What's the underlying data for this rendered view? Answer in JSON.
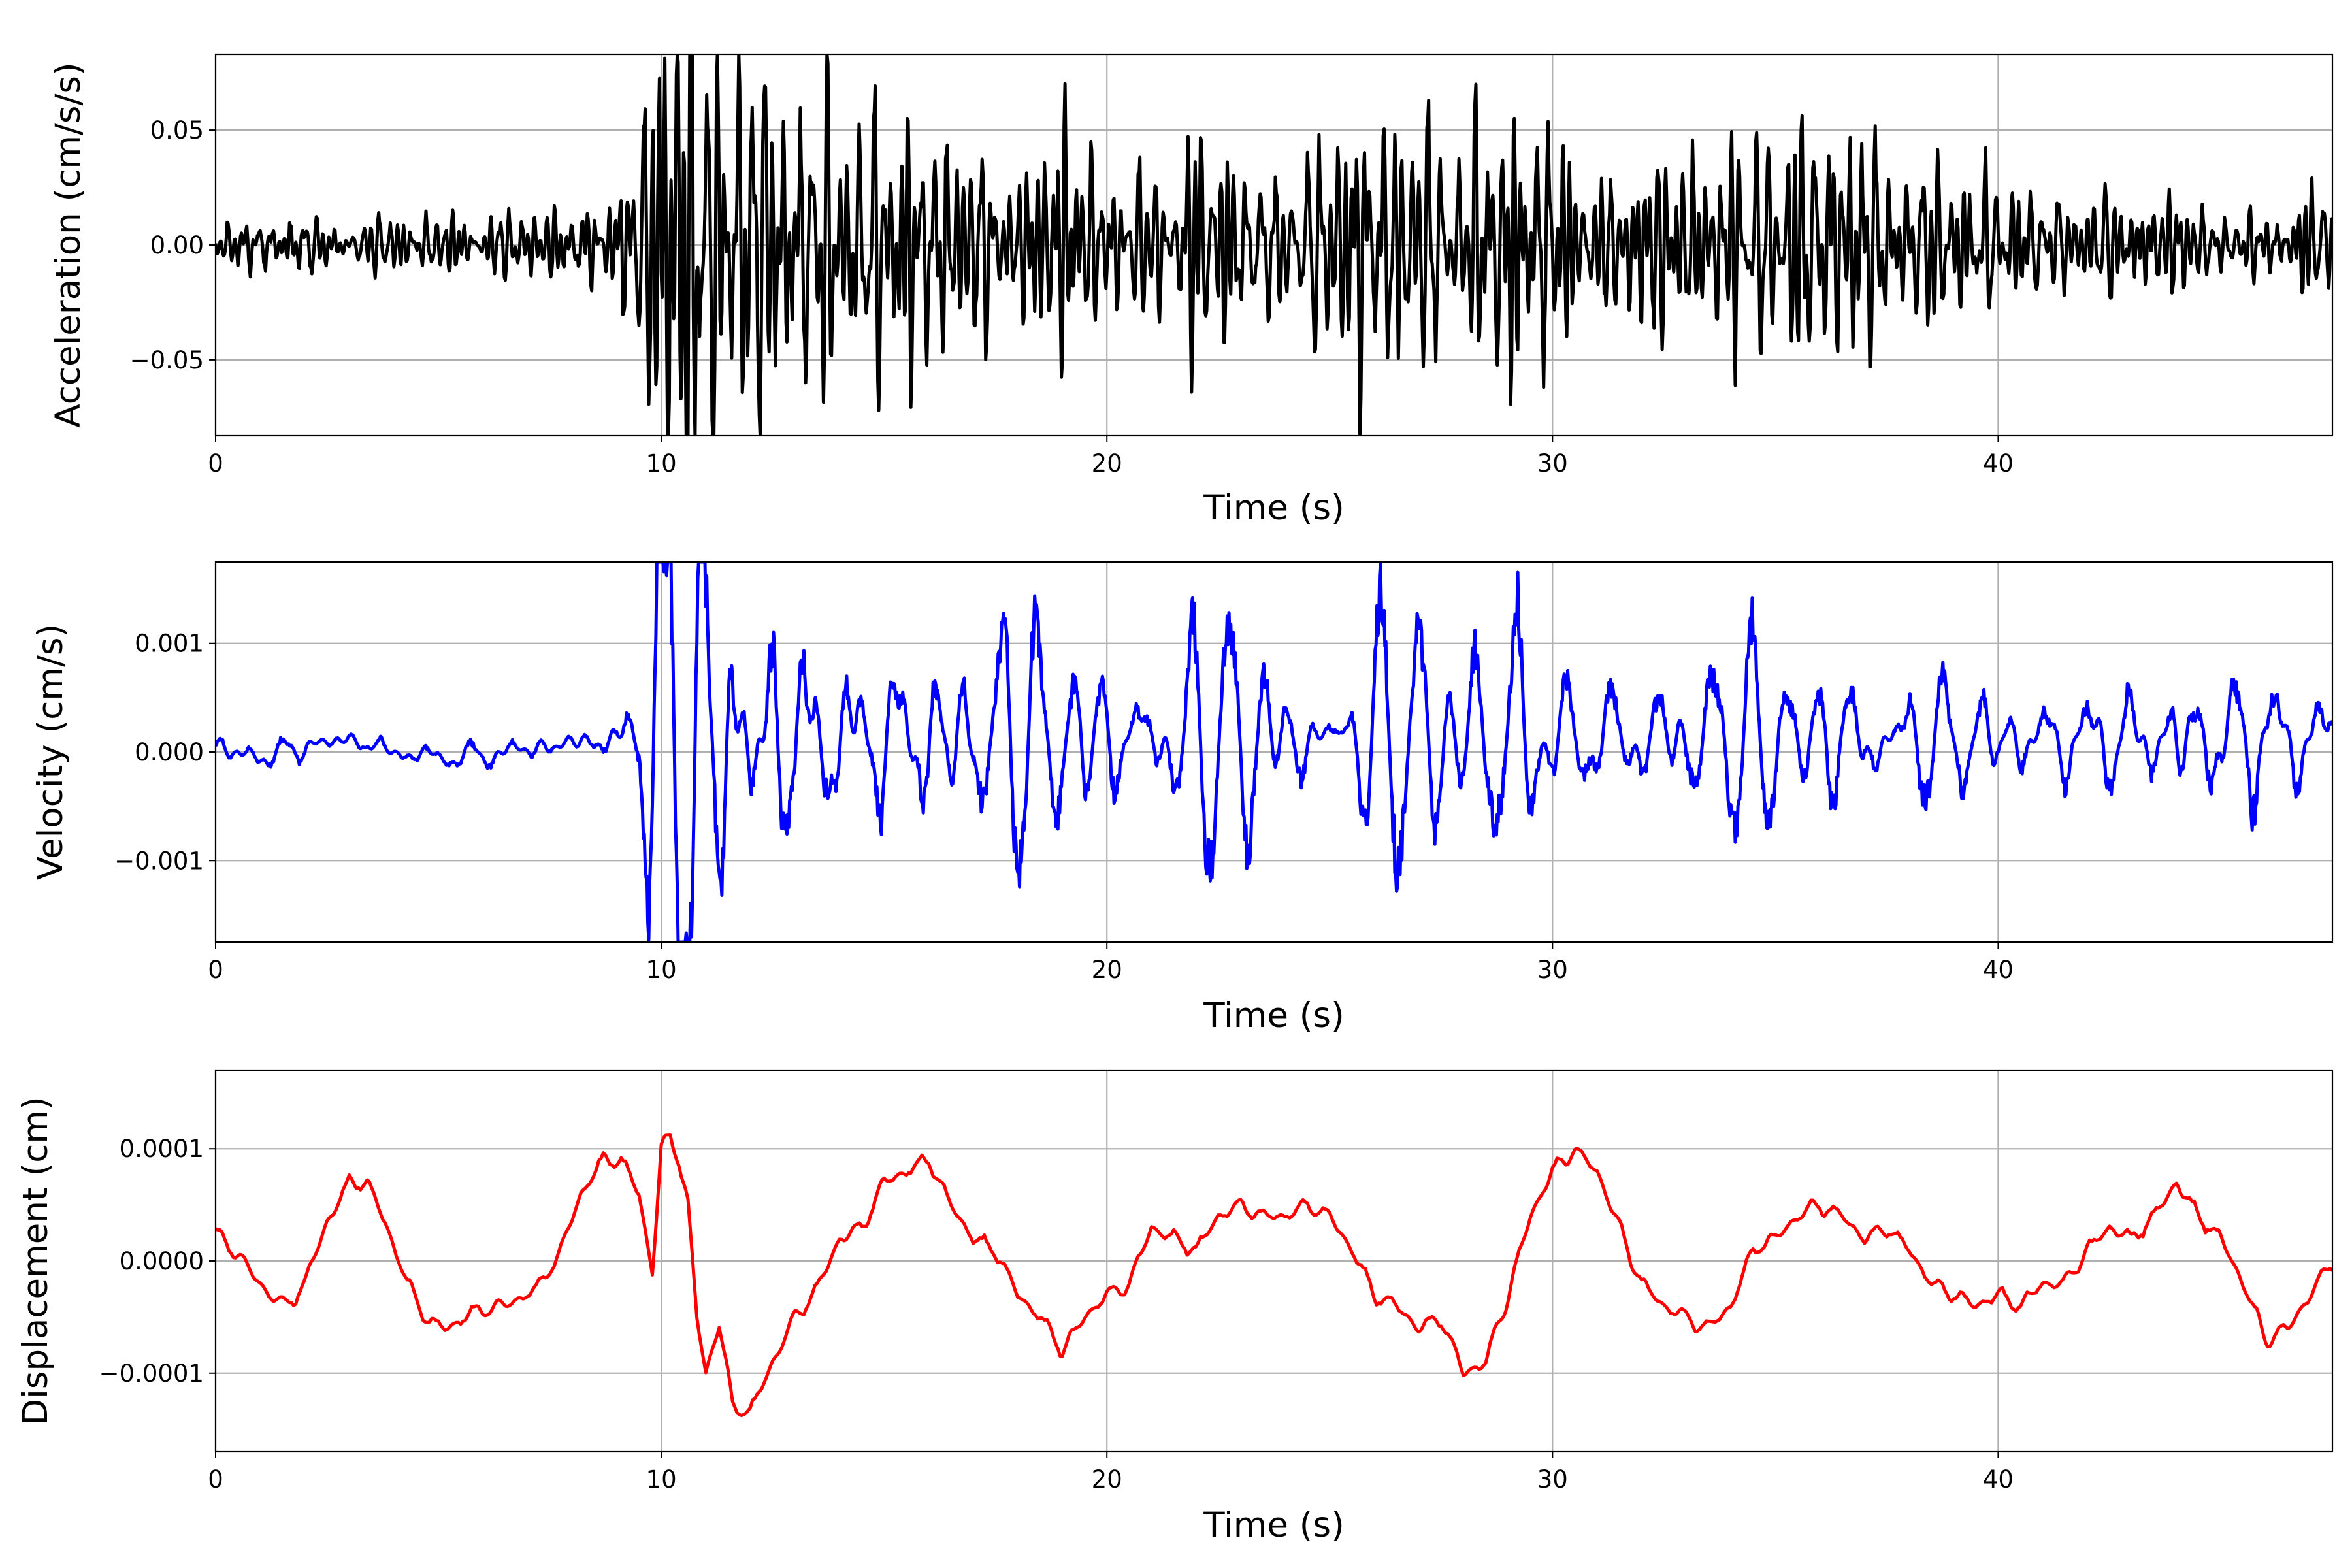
{
  "chart_data": [
    {
      "type": "line",
      "xlabel": "Time (s)",
      "ylabel": "Acceleration (cm/s/s)",
      "xlim": [
        0,
        47.5
      ],
      "ylim": [
        -0.083,
        0.083
      ],
      "xticks": [
        0,
        10,
        20,
        30,
        40
      ],
      "xtick_labels": [
        "0",
        "10",
        "20",
        "30",
        "40"
      ],
      "yticks": [
        -0.05,
        0.0,
        0.05
      ],
      "ytick_labels": [
        "−0.05",
        "0.00",
        "0.05"
      ],
      "grid": true,
      "color": "#000000",
      "signal_dt": 0.02,
      "signal_freq_range_hz": [
        2.5,
        9
      ],
      "envelope": {
        "t": [
          0,
          1,
          2,
          3,
          4,
          5,
          6,
          7,
          8,
          9,
          9.5,
          9.8,
          10.2,
          10.5,
          11,
          12,
          13,
          14,
          15,
          16,
          17,
          18,
          20,
          22,
          24,
          26,
          28,
          29.8,
          30.5,
          32,
          34,
          35.5,
          36,
          37,
          38,
          40,
          42,
          44,
          46,
          47.5
        ],
        "amp": [
          0.004,
          0.0045,
          0.005,
          0.0045,
          0.005,
          0.005,
          0.006,
          0.007,
          0.008,
          0.01,
          0.015,
          0.045,
          0.07,
          0.06,
          0.04,
          0.03,
          0.026,
          0.026,
          0.024,
          0.026,
          0.022,
          0.02,
          0.017,
          0.017,
          0.017,
          0.02,
          0.021,
          0.028,
          0.02,
          0.016,
          0.018,
          0.022,
          0.025,
          0.018,
          0.014,
          0.011,
          0.009,
          0.009,
          0.008,
          0.008
        ]
      }
    },
    {
      "type": "line",
      "xlabel": "Time (s)",
      "ylabel": "Velocity (cm/s)",
      "xlim": [
        0,
        47.5
      ],
      "ylim": [
        -0.00175,
        0.00175
      ],
      "xticks": [
        0,
        10,
        20,
        30,
        40
      ],
      "xtick_labels": [
        "0",
        "10",
        "20",
        "30",
        "40"
      ],
      "yticks": [
        -0.001,
        0.0,
        0.001
      ],
      "ytick_labels": [
        "−0.001",
        "0.000",
        "0.001"
      ],
      "grid": true,
      "color": "#0000ff",
      "signal_dt": 0.02,
      "signal_freq_range_hz": [
        0.9,
        3.5
      ],
      "trend": {
        "t": [
          0,
          1,
          2,
          3,
          4,
          5,
          6,
          7,
          8,
          9
        ],
        "val": [
          3e-05,
          -5e-05,
          5e-05,
          0.00012,
          0.0,
          -5e-05,
          -3e-05,
          3e-05,
          8e-05,
          0.00012
        ]
      },
      "envelope": {
        "t": [
          0,
          2,
          4,
          6,
          8,
          9,
          9.5,
          9.8,
          10.2,
          10.5,
          11,
          12,
          14,
          16,
          18,
          20,
          22,
          24,
          26,
          28,
          29.3,
          30,
          32,
          34,
          36,
          38,
          40,
          42,
          44,
          46,
          47.5
        ],
        "amp": [
          6e-05,
          6e-05,
          5e-05,
          6e-05,
          8e-05,
          0.0001,
          0.00025,
          0.0009,
          0.0013,
          0.0014,
          0.0009,
          0.0006,
          0.00045,
          0.00048,
          0.00045,
          0.0004,
          0.00045,
          0.0005,
          0.0005,
          0.00055,
          0.0009,
          0.0005,
          0.00042,
          0.00035,
          0.00032,
          0.00025,
          0.00022,
          0.00022,
          0.00026,
          0.00024,
          0.00022
        ]
      }
    },
    {
      "type": "line",
      "xlabel": "Time (s)",
      "ylabel": "Displacement (cm)",
      "xlim": [
        0,
        47.5
      ],
      "ylim": [
        -0.00017,
        0.00017
      ],
      "xticks": [
        0,
        10,
        20,
        30,
        40
      ],
      "xtick_labels": [
        "0",
        "10",
        "20",
        "30",
        "40"
      ],
      "yticks": [
        -0.0001,
        0.0,
        0.0001
      ],
      "ytick_labels": [
        "−0.0001",
        "0.0000",
        "0.0001"
      ],
      "grid": true,
      "color": "#ff0000",
      "signal_dt": 0.05,
      "signal_freq_range_hz": [
        1.2,
        2.5
      ],
      "x": [
        0,
        0.3,
        0.7,
        1.2,
        1.6,
        2.0,
        2.5,
        3.0,
        3.4,
        3.8,
        4.3,
        4.8,
        5.2,
        5.8,
        6.5,
        7.2,
        7.7,
        8.2,
        8.7,
        9.1,
        9.5,
        9.8,
        10.0,
        10.2,
        10.4,
        10.6,
        10.8,
        11.0,
        11.3,
        11.6,
        12.0,
        12.5,
        13.0,
        13.5,
        14.0,
        14.5,
        15.0,
        15.5,
        16.0,
        16.5,
        17.0,
        17.5,
        18.0,
        18.5,
        19.0,
        19.5,
        20.0,
        20.5,
        21.0,
        21.5,
        22.0,
        22.5,
        23.0,
        23.5,
        24.0,
        24.5,
        25.0,
        25.5,
        26.0,
        26.5,
        27.0,
        27.5,
        28.0,
        28.5,
        29.0,
        29.5,
        30.0,
        30.5,
        31.0,
        31.5,
        32.0,
        32.5,
        33.0,
        33.5,
        34.0,
        34.5,
        35.0,
        35.5,
        36.0,
        36.5,
        37.0,
        37.5,
        38.0,
        38.5,
        39.0,
        39.5,
        40.0,
        40.5,
        41.0,
        41.5,
        42.0,
        42.5,
        43.0,
        43.5,
        44.0,
        44.5,
        45.0,
        45.5,
        46.0,
        46.5,
        47.0,
        47.5
      ],
      "y": [
        2.5e-05,
        1.5e-05,
        -5e-06,
        -3e-05,
        -4e-05,
        -2e-05,
        3.5e-05,
        7e-05,
        7e-05,
        3.5e-05,
        -2e-05,
        -5.5e-05,
        -6e-05,
        -4.5e-05,
        -4e-05,
        -2.5e-05,
        5e-06,
        6e-05,
        9e-05,
        9e-05,
        6e-05,
        -1e-05,
        0.0001,
        0.00011,
        9e-05,
        5e-05,
        -5e-05,
        -0.0001,
        -5.5e-05,
        -0.00013,
        -0.000135,
        -9e-05,
        -5e-05,
        -2.5e-05,
        2e-05,
        3e-05,
        7e-05,
        8e-05,
        9e-05,
        5e-05,
        2e-05,
        1e-05,
        -3e-05,
        -5e-05,
        -8e-05,
        -5e-05,
        -3e-05,
        -2e-05,
        3e-05,
        2e-05,
        1e-05,
        4e-05,
        5e-05,
        4e-05,
        4e-05,
        5e-05,
        4e-05,
        1e-05,
        -3e-05,
        -4e-05,
        -6e-05,
        -5e-05,
        -0.0001,
        -9e-05,
        -3e-05,
        4e-05,
        8e-05,
        0.0001,
        8e-05,
        3e-05,
        -2e-05,
        -4e-05,
        -5e-05,
        -6e-05,
        -4e-05,
        1e-05,
        2e-05,
        4e-05,
        5e-05,
        4e-05,
        2e-05,
        3e-05,
        1e-05,
        -2e-05,
        -3e-05,
        -4e-05,
        -3e-05,
        -4e-05,
        -2e-05,
        -2e-05,
        1e-05,
        3e-05,
        2e-05,
        4e-05,
        7e-05,
        4e-05,
        2e-05,
        -2e-05,
        -7e-05,
        -6e-05,
        -3e-05,
        0.0
      ]
    }
  ]
}
